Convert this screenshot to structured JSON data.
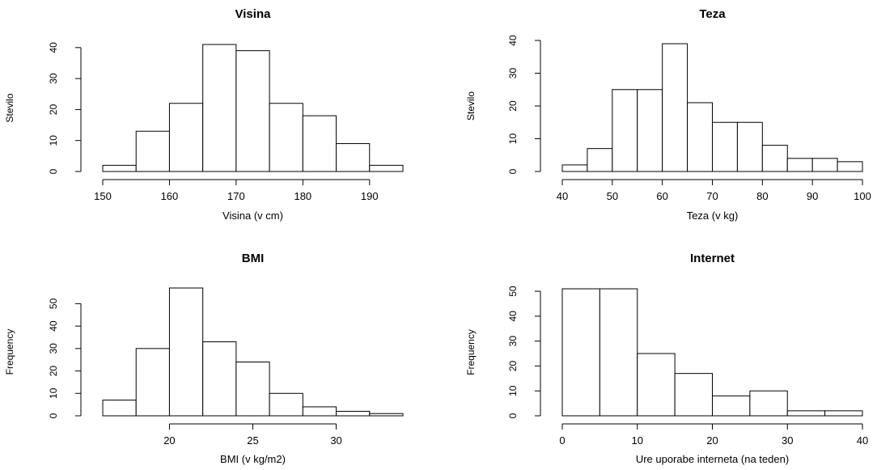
{
  "chart_data": [
    {
      "type": "bar",
      "title": "Visina",
      "xlabel": "Visina (v cm)",
      "ylabel": "Stevilo",
      "bin_edges": [
        150,
        155,
        160,
        165,
        170,
        175,
        180,
        185,
        190,
        195
      ],
      "values": [
        2,
        13,
        22,
        41,
        39,
        22,
        18,
        9,
        2
      ],
      "xticks": [
        150,
        160,
        170,
        180,
        190
      ],
      "yticks": [
        0,
        10,
        20,
        30,
        40
      ],
      "xlim": [
        150,
        195
      ],
      "ylim": [
        0,
        41
      ]
    },
    {
      "type": "bar",
      "title": "Teza",
      "xlabel": "Teza (v kg)",
      "ylabel": "Stevilo",
      "bin_edges": [
        40,
        45,
        50,
        55,
        60,
        65,
        70,
        75,
        80,
        85,
        90,
        95,
        100
      ],
      "values": [
        2,
        7,
        25,
        25,
        39,
        21,
        15,
        15,
        8,
        4,
        4,
        3
      ],
      "xticks": [
        40,
        50,
        60,
        70,
        80,
        90,
        100
      ],
      "yticks": [
        0,
        10,
        20,
        30,
        40
      ],
      "xlim": [
        40,
        100
      ],
      "ylim": [
        0,
        40
      ]
    },
    {
      "type": "bar",
      "title": "BMI",
      "xlabel": "BMI (v kg/m2)",
      "ylabel": "Frequency",
      "bin_edges": [
        16,
        18,
        20,
        22,
        24,
        26,
        28,
        30,
        32,
        34
      ],
      "values": [
        7,
        30,
        57,
        33,
        24,
        10,
        4,
        2,
        1
      ],
      "xticks": [
        20,
        25,
        30
      ],
      "yticks": [
        0,
        10,
        20,
        30,
        40,
        50
      ],
      "xlim": [
        16,
        34
      ],
      "ylim": [
        0,
        57
      ]
    },
    {
      "type": "bar",
      "title": "Internet",
      "xlabel": "Ure uporabe interneta (na teden)",
      "ylabel": "Frequency",
      "bin_edges": [
        0,
        5,
        10,
        15,
        20,
        25,
        30,
        35,
        40
      ],
      "values": [
        51,
        51,
        25,
        17,
        8,
        10,
        2,
        2
      ],
      "xticks": [
        0,
        10,
        20,
        30,
        40
      ],
      "yticks": [
        0,
        10,
        20,
        30,
        40,
        50
      ],
      "xlim": [
        0,
        40
      ],
      "ylim": [
        0,
        51
      ]
    }
  ]
}
